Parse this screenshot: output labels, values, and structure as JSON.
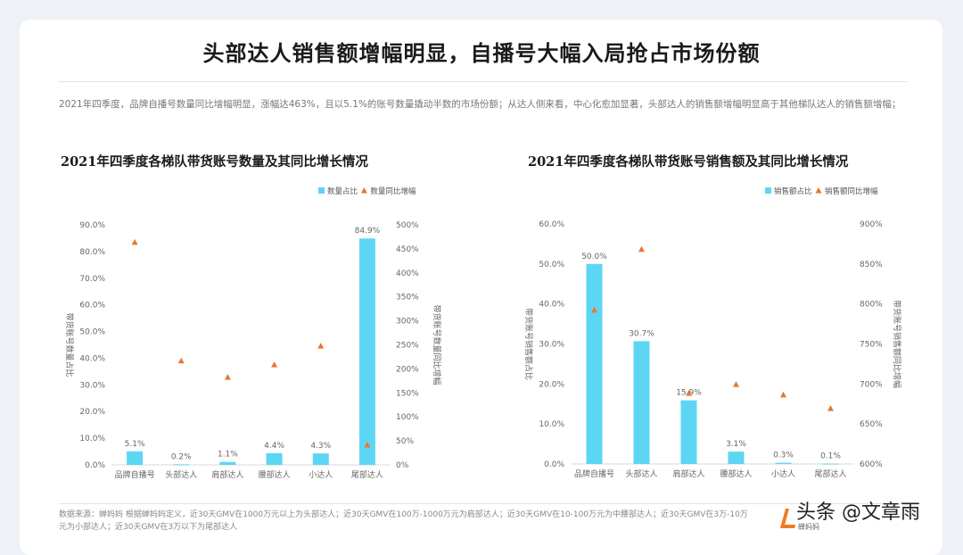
{
  "header": {
    "title": "头部达人销售额增幅明显，自播号大幅入局抢占市场份额"
  },
  "summary": "2021年四季度，品牌自播号数量同比增幅明显，涨幅达463%，且以5.1%的账号数量撬动半数的市场份额；从达人侧来看，中心化愈加显著，头部达人的销售额增幅明显高于其他梯队达人的销售额增幅；",
  "footer": {
    "source": "数据来源：蝉妈妈  根据蝉妈妈定义，近30天GMV在1000万元以上为头部达人；近30天GMV在100万-1000万元为肩部达人；近30天GMV在10-100万元为中腰部达人；近30天GMV在3万-10万元为小部达人；近30天GMV在3万以下为尾部达人"
  },
  "watermark": {
    "text": "头条 @文章雨",
    "sub": "蝉妈妈"
  },
  "colors": {
    "bar": "#5dd6f4",
    "marker": "#e8772e"
  },
  "chart_data": [
    {
      "type": "bar+scatter",
      "title": "2021年四季度各梯队带货账号数量及其同比增长情况",
      "categories": [
        "品牌自播号",
        "头部达人",
        "肩部达人",
        "腰部达人",
        "小达人",
        "尾部达人"
      ],
      "series": [
        {
          "name": "数量占比",
          "type": "bar",
          "axis": "left",
          "values": [
            5.1,
            0.2,
            1.1,
            4.4,
            4.3,
            84.9
          ],
          "labels": [
            "5.1%",
            "0.2%",
            "1.1%",
            "4.4%",
            "4.3%",
            "84.9%"
          ]
        },
        {
          "name": "数量同比增幅",
          "type": "scatter",
          "marker": "triangle",
          "axis": "right",
          "values": [
            463,
            216,
            182,
            208,
            247,
            41
          ]
        }
      ],
      "ylabel": "带货账号数量占比",
      "ylabel_right": "带货账号数量同比增幅",
      "ylim": [
        0,
        90
      ],
      "ylim_right": [
        0,
        500
      ],
      "yticks": [
        "0.0%",
        "10.0%",
        "20.0%",
        "30.0%",
        "40.0%",
        "50.0%",
        "60.0%",
        "70.0%",
        "80.0%",
        "90.0%"
      ],
      "yticks_right": [
        "0%",
        "50%",
        "100%",
        "150%",
        "200%",
        "250%",
        "300%",
        "350%",
        "400%",
        "450%",
        "500%"
      ],
      "legend": "top-right",
      "grid": false
    },
    {
      "type": "bar+scatter",
      "title": "2021年四季度各梯队带货账号销售额及其同比增长情况",
      "categories": [
        "品牌自播号",
        "头部达人",
        "肩部达人",
        "腰部达人",
        "小达人",
        "尾部达人"
      ],
      "series": [
        {
          "name": "销售额占比",
          "type": "bar",
          "axis": "left",
          "values": [
            50.0,
            30.7,
            15.9,
            3.1,
            0.3,
            0.1
          ],
          "labels": [
            "50.0%",
            "30.7%",
            "15.9%",
            "3.1%",
            "0.3%",
            "0.1%"
          ]
        },
        {
          "name": "销售额同比增幅",
          "type": "scatter",
          "marker": "triangle",
          "axis": "right",
          "values": [
            792,
            868,
            688,
            699,
            686,
            669
          ]
        }
      ],
      "ylabel": "带货账号销售额占比",
      "ylabel_right": "带货账号销售额同比增幅",
      "ylim": [
        0,
        60
      ],
      "ylim_right": [
        600,
        900
      ],
      "yticks": [
        "0.0%",
        "10.0%",
        "20.0%",
        "30.0%",
        "40.0%",
        "50.0%",
        "60.0%"
      ],
      "yticks_right": [
        "600%",
        "650%",
        "700%",
        "750%",
        "800%",
        "850%",
        "900%"
      ],
      "legend": "top-right",
      "grid": false
    }
  ]
}
